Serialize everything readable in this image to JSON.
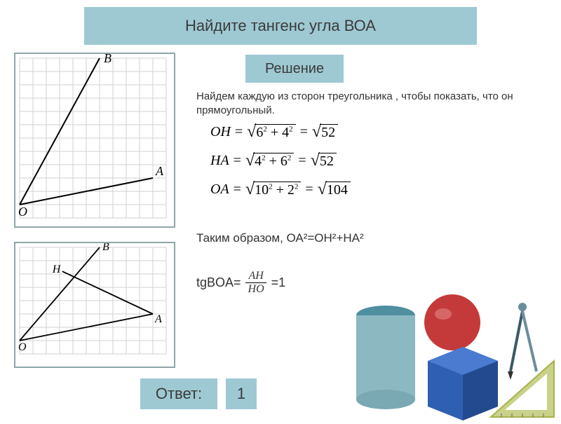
{
  "title": "Найдите тангенс угла ВОА",
  "solution_label": "Решение",
  "explanation": "Найдем каждую из сторон треугольника , чтобы показать, что он прямоугольный.",
  "formulas": {
    "oh": {
      "lhs": "OH",
      "a": "6",
      "b": "4",
      "result": "52"
    },
    "ha": {
      "lhs": "HA",
      "a": "4",
      "b": "6",
      "result": "52"
    },
    "oa": {
      "lhs": "OA",
      "a": "10",
      "b": "2",
      "result": "104"
    }
  },
  "conclusion": "Таким образом,  ОА²=ОН²+НА²",
  "tg": {
    "label": "tgBOA=",
    "num": "AH",
    "den": "HO",
    "eq": "=1"
  },
  "answer_label": "Ответ:",
  "answer_value": "1",
  "figure1": {
    "grid": {
      "cols": 11,
      "rows": 12,
      "cell": 19,
      "color": "#d0d0d0"
    },
    "points": {
      "O": {
        "x": 0,
        "y": 11,
        "label": "O"
      },
      "B": {
        "x": 6,
        "y": 0,
        "label": "B"
      },
      "A": {
        "x": 10,
        "y": 9,
        "label": "A"
      }
    },
    "line_color": "#000000",
    "label_font": 18
  },
  "figure2": {
    "grid": {
      "cols": 11,
      "rows": 8,
      "cell": 19,
      "color": "#d0d0d0"
    },
    "points": {
      "O": {
        "x": 0,
        "y": 7,
        "label": "O"
      },
      "B": {
        "x": 6,
        "y": 0,
        "label": "B"
      },
      "A": {
        "x": 10,
        "y": 5,
        "label": "A"
      },
      "H": {
        "x": 3.2,
        "y": 1.8,
        "label": "H"
      }
    },
    "line_color": "#000000",
    "label_font": 16
  },
  "decor_colors": {
    "cylinder_top": "#4f8fa0",
    "cylinder_body": "#8cb8c2",
    "cube": "#2e5fb3",
    "sphere": "#c43a3a",
    "triangle": "#a8b24a",
    "compass": "#6b8e9a",
    "frame": "#8fa5aa"
  }
}
